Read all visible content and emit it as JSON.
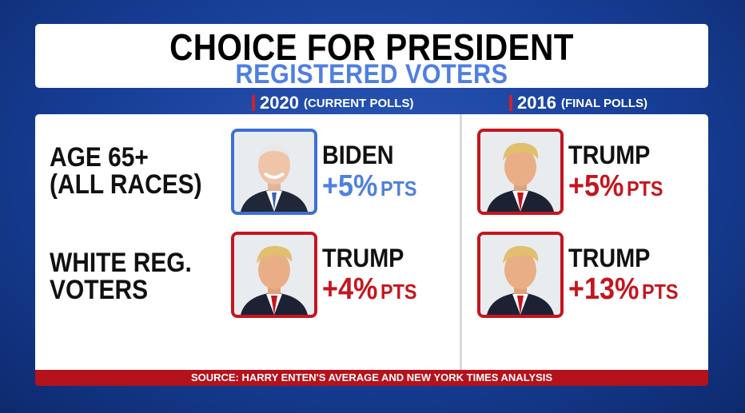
{
  "title": "CHOICE FOR PRESIDENT",
  "subtitle": "REGISTERED VOTERS",
  "columns": [
    {
      "year": "2020",
      "note": "(CURRENT POLLS)"
    },
    {
      "year": "2016",
      "note": "(FINAL POLLS)"
    }
  ],
  "rows": [
    {
      "label_line1": "AGE 65+",
      "label_line2": "(ALL RACES)",
      "col2020": {
        "candidate": "BIDEN",
        "margin": "+5%",
        "unit": "PTS",
        "party_color": "#4f7fe0"
      },
      "col2016": {
        "candidate": "TRUMP",
        "margin": "+5%",
        "unit": "PTS",
        "party_color": "#c4161f"
      }
    },
    {
      "label_line1": "WHITE REG.",
      "label_line2": "VOTERS",
      "col2020": {
        "candidate": "TRUMP",
        "margin": "+4%",
        "unit": "PTS",
        "party_color": "#c4161f"
      },
      "col2016": {
        "candidate": "TRUMP",
        "margin": "+13%",
        "unit": "PTS",
        "party_color": "#c4161f"
      }
    }
  ],
  "source": "SOURCE: HARRY ENTEN'S AVERAGE AND NEW YORK TIMES ANALYSIS"
}
